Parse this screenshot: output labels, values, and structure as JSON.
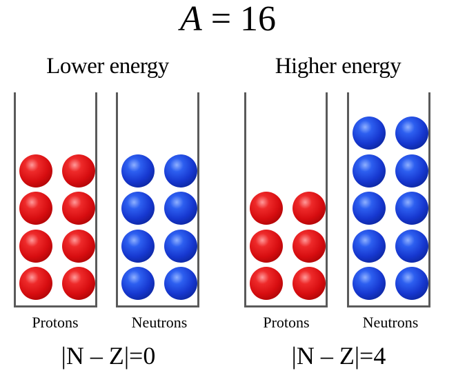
{
  "title": {
    "variable": "A",
    "relation": " = 16"
  },
  "groups": [
    {
      "label": "Lower energy",
      "tubes": [
        {
          "label": "Protons",
          "particle": "proton",
          "count": 8
        },
        {
          "label": "Neutrons",
          "particle": "neutron",
          "count": 8
        }
      ],
      "formula": "|N – Z|=0"
    },
    {
      "label": "Higher energy",
      "tubes": [
        {
          "label": "Protons",
          "particle": "proton",
          "count": 6
        },
        {
          "label": "Neutrons",
          "particle": "neutron",
          "count": 10
        }
      ],
      "formula": "|N – Z|=4"
    }
  ],
  "colors": {
    "proton": "#d70d10",
    "neutron": "#1637cf",
    "tube_wall": "#5a5a5a"
  }
}
